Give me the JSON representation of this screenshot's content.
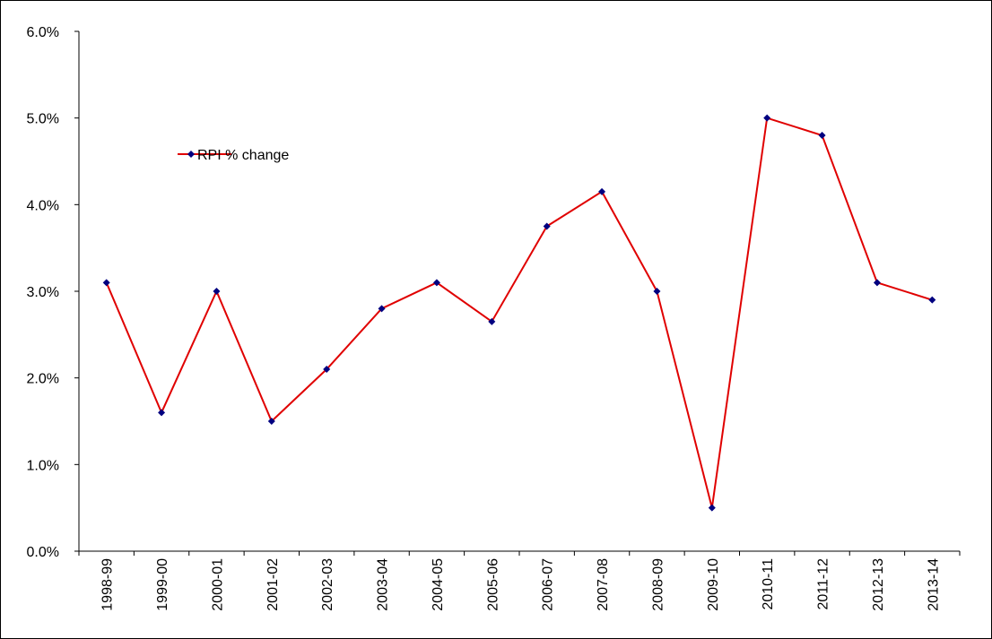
{
  "chart_data": {
    "type": "line",
    "categories": [
      "1998-99",
      "1999-00",
      "2000-01",
      "2001-02",
      "2002-03",
      "2003-04",
      "2004-05",
      "2005-06",
      "2006-07",
      "2007-08",
      "2008-09",
      "2009-10",
      "2010-11",
      "2011-12",
      "2012-13",
      "2013-14"
    ],
    "series": [
      {
        "name": "RPI % change",
        "color": "#e00000",
        "marker_color": "#000080",
        "values": [
          3.1,
          1.6,
          3.0,
          1.5,
          2.1,
          2.8,
          3.1,
          2.65,
          3.75,
          4.15,
          3.0,
          0.5,
          5.0,
          4.8,
          3.1,
          2.9
        ]
      }
    ],
    "ylim": [
      0,
      6
    ],
    "yticks": [
      {
        "value": 0,
        "label": "0.0%"
      },
      {
        "value": 1,
        "label": "1.0%"
      },
      {
        "value": 2,
        "label": "2.0%"
      },
      {
        "value": 3,
        "label": "3.0%"
      },
      {
        "value": 4,
        "label": "4.0%"
      },
      {
        "value": 5,
        "label": "5.0%"
      },
      {
        "value": 6,
        "label": "6.0%"
      }
    ],
    "grid": false,
    "legend": "upper-left"
  }
}
